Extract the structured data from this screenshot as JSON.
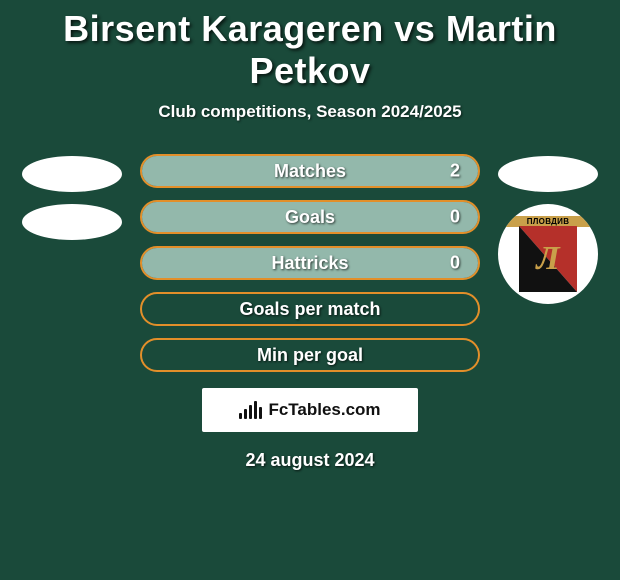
{
  "header": {
    "title": "Birsent Karageren vs Martin Petkov",
    "subtitle": "Club competitions, Season 2024/2025"
  },
  "colors": {
    "background": "#1a4a3a",
    "bar_border": "#e28f2a",
    "bar_fill": "#93b8ab",
    "white": "#ffffff"
  },
  "stats": [
    {
      "label": "Matches",
      "value": "2",
      "fill_pct": 100
    },
    {
      "label": "Goals",
      "value": "0",
      "fill_pct": 100
    },
    {
      "label": "Hattricks",
      "value": "0",
      "fill_pct": 100
    },
    {
      "label": "Goals per match",
      "value": "",
      "fill_pct": 0
    },
    {
      "label": "Min per goal",
      "value": "",
      "fill_pct": 0
    }
  ],
  "left_side": {
    "placeholders": 2
  },
  "right_side": {
    "placeholder": true,
    "club": {
      "band_text": "ПЛОВДИВ",
      "letter": "Л",
      "shield_red": "#b5302a",
      "shield_black": "#111111",
      "accent": "#c9a04a"
    }
  },
  "branding": {
    "site_name": "FcTables.com",
    "icon_bar_heights": [
      6,
      10,
      14,
      18,
      12
    ]
  },
  "footer": {
    "date": "24 august 2024"
  }
}
